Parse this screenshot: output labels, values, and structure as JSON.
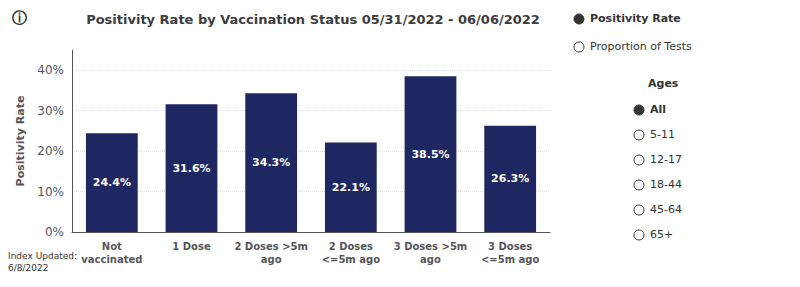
{
  "chart_data": {
    "type": "bar",
    "title": "Positivity Rate by Vaccination Status 05/31/2022 - 06/06/2022",
    "categories": [
      "Not\nvaccinated",
      "1 Dose",
      "2 Doses >5m\nago",
      "2 Doses\n<=5m ago",
      "3 Doses >5m\nago",
      "3 Doses\n<=5m ago"
    ],
    "values": [
      24.4,
      31.6,
      34.3,
      22.1,
      38.5,
      26.3
    ],
    "value_labels": [
      "24.4%",
      "31.6%",
      "34.3%",
      "22.1%",
      "38.5%",
      "26.3%"
    ],
    "data_labels": true,
    "color": "#1e2761",
    "ylabel": "Positivity Rate",
    "ylim": [
      0,
      45
    ],
    "yticks": [
      {
        "value": 0,
        "label": "0%"
      },
      {
        "value": 10,
        "label": "10%"
      },
      {
        "value": 20,
        "label": "20%"
      },
      {
        "value": 30,
        "label": "30%"
      },
      {
        "value": 40,
        "label": "40%"
      }
    ],
    "grid": true,
    "annotations": [
      "ⓘ",
      "Index Updated:\n6/8/2022",
      "Positivity Rate",
      "Proportion of Tests",
      "Ages",
      "All",
      "5-11",
      "12-17",
      "18-44",
      "45-64",
      "65+"
    ]
  }
}
